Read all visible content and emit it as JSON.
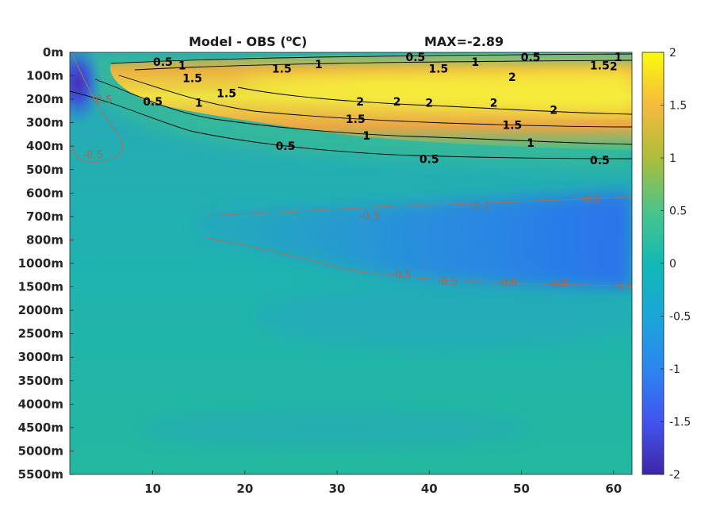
{
  "chart_data": {
    "type": "heatmap",
    "title": "Model - OBS (",
    "title_unit_sup": "o",
    "title_unit_suffix": "C)",
    "max_label": "MAX=-2.89",
    "colormap": "parula",
    "colorbar": {
      "ticks": [
        "2",
        "1.5",
        "1",
        "0.5",
        "0",
        "-0.5",
        "-1",
        "-1.5",
        "-2"
      ],
      "clim": [
        -2,
        2
      ]
    },
    "x": {
      "range": [
        1,
        62
      ],
      "ticks": [
        "10",
        "20",
        "30",
        "40",
        "50",
        "60"
      ],
      "tick_values": [
        10,
        20,
        30,
        40,
        50,
        60
      ]
    },
    "y": {
      "ticks": [
        "0m",
        "100m",
        "200m",
        "300m",
        "400m",
        "500m",
        "600m",
        "700m",
        "800m",
        "1000m",
        "1500m",
        "2000m",
        "2500m",
        "3000m",
        "3500m",
        "4000m",
        "4500m",
        "5000m",
        "5500m"
      ]
    },
    "contour_levels": [
      "-0.5",
      "0.5",
      "1",
      "1.5",
      "2"
    ],
    "contour_labels_positive": [
      {
        "text": "0.5",
        "x": 11.1,
        "y": 0.4
      },
      {
        "text": "1",
        "x": 13.2,
        "y": 0.55
      },
      {
        "text": "1.5",
        "x": 14.3,
        "y": 1.1
      },
      {
        "text": "0.5",
        "x": 10.0,
        "y": 2.1
      },
      {
        "text": "1",
        "x": 15.0,
        "y": 2.15
      },
      {
        "text": "1.5",
        "x": 18.0,
        "y": 1.75
      },
      {
        "text": "1.5",
        "x": 24.0,
        "y": 0.7
      },
      {
        "text": "1",
        "x": 28.0,
        "y": 0.5
      },
      {
        "text": "2",
        "x": 32.5,
        "y": 2.1
      },
      {
        "text": "2",
        "x": 36.5,
        "y": 2.1
      },
      {
        "text": "2",
        "x": 40.0,
        "y": 2.15
      },
      {
        "text": "2",
        "x": 47.0,
        "y": 2.15
      },
      {
        "text": "2",
        "x": 49.0,
        "y": 1.05
      },
      {
        "text": "1.5",
        "x": 32.0,
        "y": 2.85
      },
      {
        "text": "1",
        "x": 33.2,
        "y": 3.55
      },
      {
        "text": "0.5",
        "x": 24.4,
        "y": 4.0
      },
      {
        "text": "0.5",
        "x": 40.0,
        "y": 4.55
      },
      {
        "text": "0.5",
        "x": 38.5,
        "y": 0.2
      },
      {
        "text": "1.5",
        "x": 41.0,
        "y": 0.7
      },
      {
        "text": "1",
        "x": 45.0,
        "y": 0.4
      },
      {
        "text": "0.5",
        "x": 51.0,
        "y": 0.2
      },
      {
        "text": "1.5",
        "x": 49.0,
        "y": 3.1
      },
      {
        "text": "1",
        "x": 51.0,
        "y": 3.85
      },
      {
        "text": "2",
        "x": 53.5,
        "y": 2.45
      },
      {
        "text": "1.5",
        "x": 58.5,
        "y": 0.55
      },
      {
        "text": "2",
        "x": 60.0,
        "y": 0.6
      },
      {
        "text": "1",
        "x": 60.5,
        "y": 0.2
      },
      {
        "text": "0.5",
        "x": 58.5,
        "y": 4.6
      }
    ],
    "contour_labels_negative": [
      {
        "text": "-0.5",
        "x": 4.5,
        "y": 2.0
      },
      {
        "text": "-0.5",
        "x": 3.5,
        "y": 4.35
      },
      {
        "text": "-0.5",
        "x": 33.5,
        "y": 6.95
      },
      {
        "text": "-0.5",
        "x": 45.5,
        "y": 6.55
      },
      {
        "text": "-0.5",
        "x": 57.5,
        "y": 6.25
      },
      {
        "text": "-0.5",
        "x": 37.0,
        "y": 9.45
      },
      {
        "text": "-0.5",
        "x": 42.0,
        "y": 9.75
      },
      {
        "text": "-0.5",
        "x": 48.5,
        "y": 9.8
      },
      {
        "text": "-0.5",
        "x": 54.0,
        "y": 9.85
      },
      {
        "text": "-0.5",
        "x": 61.0,
        "y": 9.95
      }
    ]
  },
  "colors": {
    "background_mid": "#1fb0b0",
    "warm_core": "#f5e24a",
    "cold_core": "#3a5bd8"
  }
}
